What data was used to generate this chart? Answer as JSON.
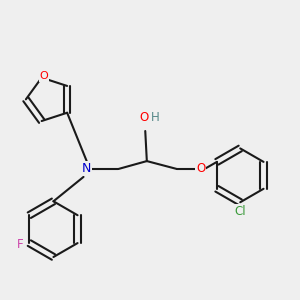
{
  "background_color": "#efefef",
  "bond_color": "#1a1a1a",
  "atom_colors": {
    "O": "#ff0000",
    "N": "#0000cc",
    "F": "#cc44aa",
    "Cl": "#3a9a3a",
    "H": "#558888",
    "C": "#1a1a1a"
  },
  "figsize": [
    3.0,
    3.0
  ],
  "dpi": 100,
  "lw": 1.5
}
